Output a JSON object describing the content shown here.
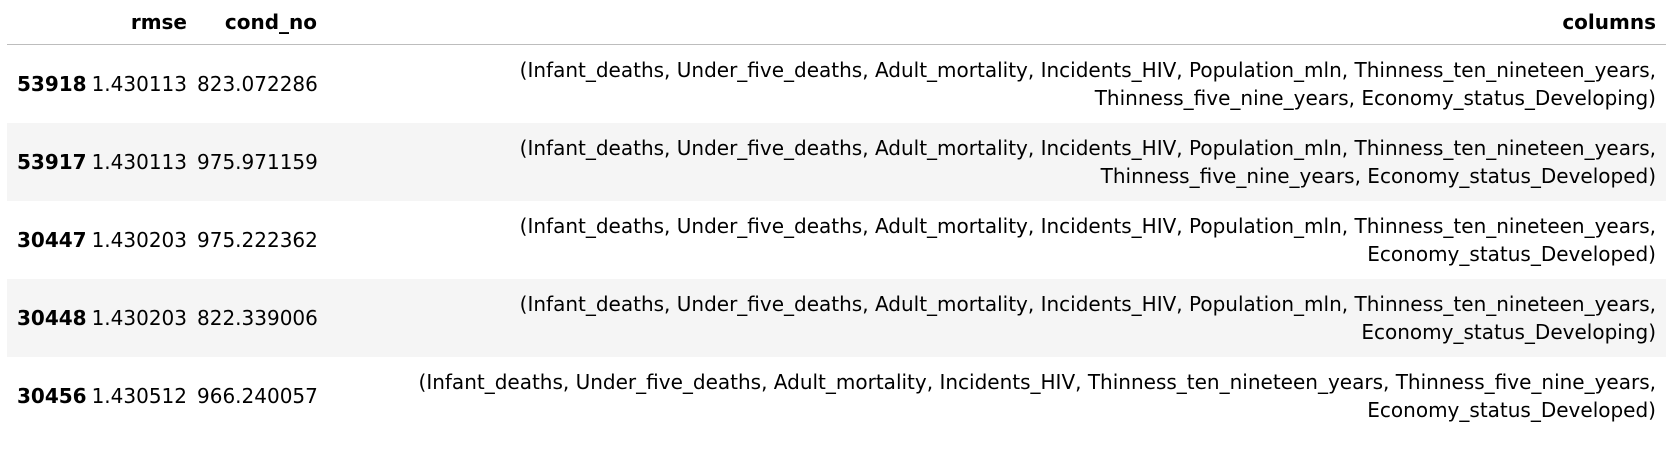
{
  "table": {
    "columns": [
      {
        "key": "index",
        "label": ""
      },
      {
        "key": "rmse",
        "label": "rmse"
      },
      {
        "key": "cond_no",
        "label": "cond_no"
      },
      {
        "key": "columns",
        "label": "columns"
      }
    ],
    "rows": [
      {
        "index": "53918",
        "rmse": "1.430113",
        "cond_no": "823.072286",
        "columns_line1": "(Infant_deaths, Under_five_deaths, Adult_mortality, Incidents_HIV, Population_mln, Thinness_ten_nineteen_years,",
        "columns_line2": "Thinness_five_nine_years, Economy_status_Developing)"
      },
      {
        "index": "53917",
        "rmse": "1.430113",
        "cond_no": "975.971159",
        "columns_line1": "(Infant_deaths, Under_five_deaths, Adult_mortality, Incidents_HIV, Population_mln, Thinness_ten_nineteen_years,",
        "columns_line2": "Thinness_five_nine_years, Economy_status_Developed)"
      },
      {
        "index": "30447",
        "rmse": "1.430203",
        "cond_no": "975.222362",
        "columns_line1": "(Infant_deaths, Under_five_deaths, Adult_mortality, Incidents_HIV, Population_mln, Thinness_ten_nineteen_years,",
        "columns_line2": "Economy_status_Developed)"
      },
      {
        "index": "30448",
        "rmse": "1.430203",
        "cond_no": "822.339006",
        "columns_line1": "(Infant_deaths, Under_five_deaths, Adult_mortality, Incidents_HIV, Population_mln, Thinness_ten_nineteen_years,",
        "columns_line2": "Economy_status_Developing)"
      },
      {
        "index": "30456",
        "rmse": "1.430512",
        "cond_no": "966.240057",
        "columns_line1": "(Infant_deaths, Under_five_deaths, Adult_mortality, Incidents_HIV, Thinness_ten_nineteen_years, Thinness_five_nine_years,",
        "columns_line2": "Economy_status_Developed)"
      }
    ]
  },
  "colors": {
    "stripe": "#f5f5f5",
    "header_rule": "#bdbdbd",
    "text": "#000000"
  }
}
